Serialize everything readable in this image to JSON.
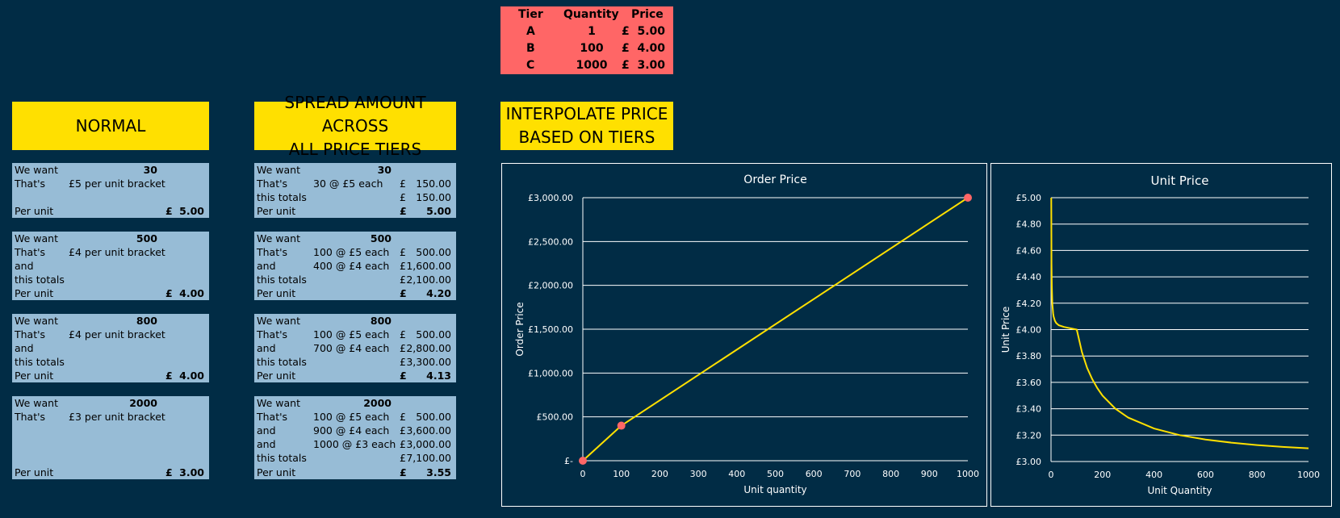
{
  "tiers": {
    "headers": [
      "Tier",
      "Quantity",
      "Price"
    ],
    "rows": [
      {
        "tier": "A",
        "qty": "1",
        "cur": "£",
        "price": "5.00"
      },
      {
        "tier": "B",
        "qty": "100",
        "cur": "£",
        "price": "4.00"
      },
      {
        "tier": "C",
        "qty": "1000",
        "cur": "£",
        "price": "3.00"
      }
    ]
  },
  "headers": {
    "normal": "NORMAL",
    "spread": [
      "SPREAD AMOUNT ACROSS",
      "ALL PRICE TIERS"
    ],
    "interpolate": [
      "INTERPOLATE PRICE",
      "BASED ON TIERS"
    ]
  },
  "normal_blocks": [
    {
      "want_label": "We want",
      "want": "30",
      "thats_label": "That's",
      "bracket": "£5 per unit bracket",
      "and_label": "",
      "totals_label": "",
      "per_unit_label": "Per unit",
      "cur": "£",
      "per_unit": "5.00"
    },
    {
      "want_label": "We want",
      "want": "500",
      "thats_label": "That's",
      "bracket": "£4 per unit bracket",
      "and_label": "and",
      "totals_label": "this totals",
      "per_unit_label": "Per unit",
      "cur": "£",
      "per_unit": "4.00"
    },
    {
      "want_label": "We want",
      "want": "800",
      "thats_label": "That's",
      "bracket": "£4 per unit bracket",
      "and_label": "and",
      "totals_label": "this totals",
      "per_unit_label": "Per unit",
      "cur": "£",
      "per_unit": "4.00"
    },
    {
      "want_label": "We want",
      "want": "2000",
      "thats_label": "That's",
      "bracket": "£3 per unit bracket",
      "and_label": "",
      "totals_label": "",
      "per_unit_label": "Per unit",
      "cur": "£",
      "per_unit": "3.00"
    }
  ],
  "spread_blocks": [
    {
      "want_label": "We want",
      "want": "30",
      "lines": [
        {
          "label": "That's",
          "desc": "30 @ £5 each",
          "cur": "£",
          "amount": "150.00"
        },
        {
          "label": "this totals",
          "desc": "",
          "cur": "£",
          "amount": "150.00"
        }
      ],
      "per_unit_label": "Per unit",
      "cur": "£",
      "per_unit": "5.00"
    },
    {
      "want_label": "We want",
      "want": "500",
      "lines": [
        {
          "label": "That's",
          "desc": "100 @ £5 each",
          "cur": "£",
          "amount": "500.00"
        },
        {
          "label": "and",
          "desc": "400 @ £4 each",
          "cur": "£",
          "amount": "1,600.00"
        },
        {
          "label": "this totals",
          "desc": "",
          "cur": "£",
          "amount": "2,100.00"
        }
      ],
      "per_unit_label": "Per unit",
      "cur": "£",
      "per_unit": "4.20"
    },
    {
      "want_label": "We want",
      "want": "800",
      "lines": [
        {
          "label": "That's",
          "desc": "100 @ £5 each",
          "cur": "£",
          "amount": "500.00"
        },
        {
          "label": "and",
          "desc": "700 @ £4 each",
          "cur": "£",
          "amount": "2,800.00"
        },
        {
          "label": "this totals",
          "desc": "",
          "cur": "£",
          "amount": "3,300.00"
        }
      ],
      "per_unit_label": "Per unit",
      "cur": "£",
      "per_unit": "4.13"
    },
    {
      "want_label": "We want",
      "want": "2000",
      "lines": [
        {
          "label": "That's",
          "desc": "100 @ £5 each",
          "cur": "£",
          "amount": "500.00"
        },
        {
          "label": "and",
          "desc": "900 @ £4 each",
          "cur": "£",
          "amount": "3,600.00"
        },
        {
          "label": "and",
          "desc": "1000 @ £3 each",
          "cur": "£",
          "amount": "3,000.00"
        },
        {
          "label": "this totals",
          "desc": "",
          "cur": "£",
          "amount": "7,100.00"
        }
      ],
      "per_unit_label": "Per unit",
      "cur": "£",
      "per_unit": "3.55"
    }
  ],
  "colors": {
    "background": "#012c45",
    "header": "#ffe000",
    "block": "#97bcd6",
    "tier_table": "#ff6666",
    "line": "#ffe000",
    "marker": "#ff6666"
  },
  "chart_data": [
    {
      "type": "line",
      "title": "Order Price",
      "xlabel": "Unit quantity",
      "ylabel": "Order Price",
      "xlim": [
        0,
        1000
      ],
      "ylim": [
        0,
        3000
      ],
      "x_ticks": [
        "0",
        "100",
        "200",
        "300",
        "400",
        "500",
        "600",
        "700",
        "800",
        "900",
        "1000"
      ],
      "y_ticks": [
        "£-",
        "£500.00",
        "£1,000.00",
        "£1,500.00",
        "£2,000.00",
        "£2,500.00",
        "£3,000.00"
      ],
      "grid": true,
      "series": [
        {
          "x": [
            0,
            100,
            1000
          ],
          "y": [
            0,
            400,
            3000
          ],
          "markers": true
        }
      ]
    },
    {
      "type": "line",
      "title": "Unit Price",
      "xlabel": "Unit Quantity",
      "ylabel": "Unit Price",
      "xlim": [
        0,
        1000
      ],
      "ylim": [
        3.0,
        5.0
      ],
      "x_ticks": [
        "0",
        "200",
        "400",
        "600",
        "800",
        "1000"
      ],
      "y_ticks": [
        "£3.00",
        "£3.20",
        "£3.40",
        "£3.60",
        "£3.80",
        "£4.00",
        "£4.20",
        "£4.40",
        "£4.60",
        "£4.80",
        "£5.00"
      ],
      "grid": true,
      "series": [
        {
          "x": [
            1,
            2,
            3,
            5,
            8,
            10,
            15,
            20,
            30,
            50,
            100,
            120,
            140,
            160,
            180,
            200,
            250,
            300,
            400,
            500,
            600,
            700,
            800,
            900,
            1000
          ],
          "y": [
            5.0,
            4.5,
            4.33,
            4.2,
            4.125,
            4.1,
            4.067,
            4.05,
            4.033,
            4.02,
            4.0,
            3.83,
            3.71,
            3.625,
            3.556,
            3.5,
            3.4,
            3.333,
            3.25,
            3.2,
            3.167,
            3.143,
            3.125,
            3.111,
            3.1
          ]
        }
      ]
    }
  ]
}
